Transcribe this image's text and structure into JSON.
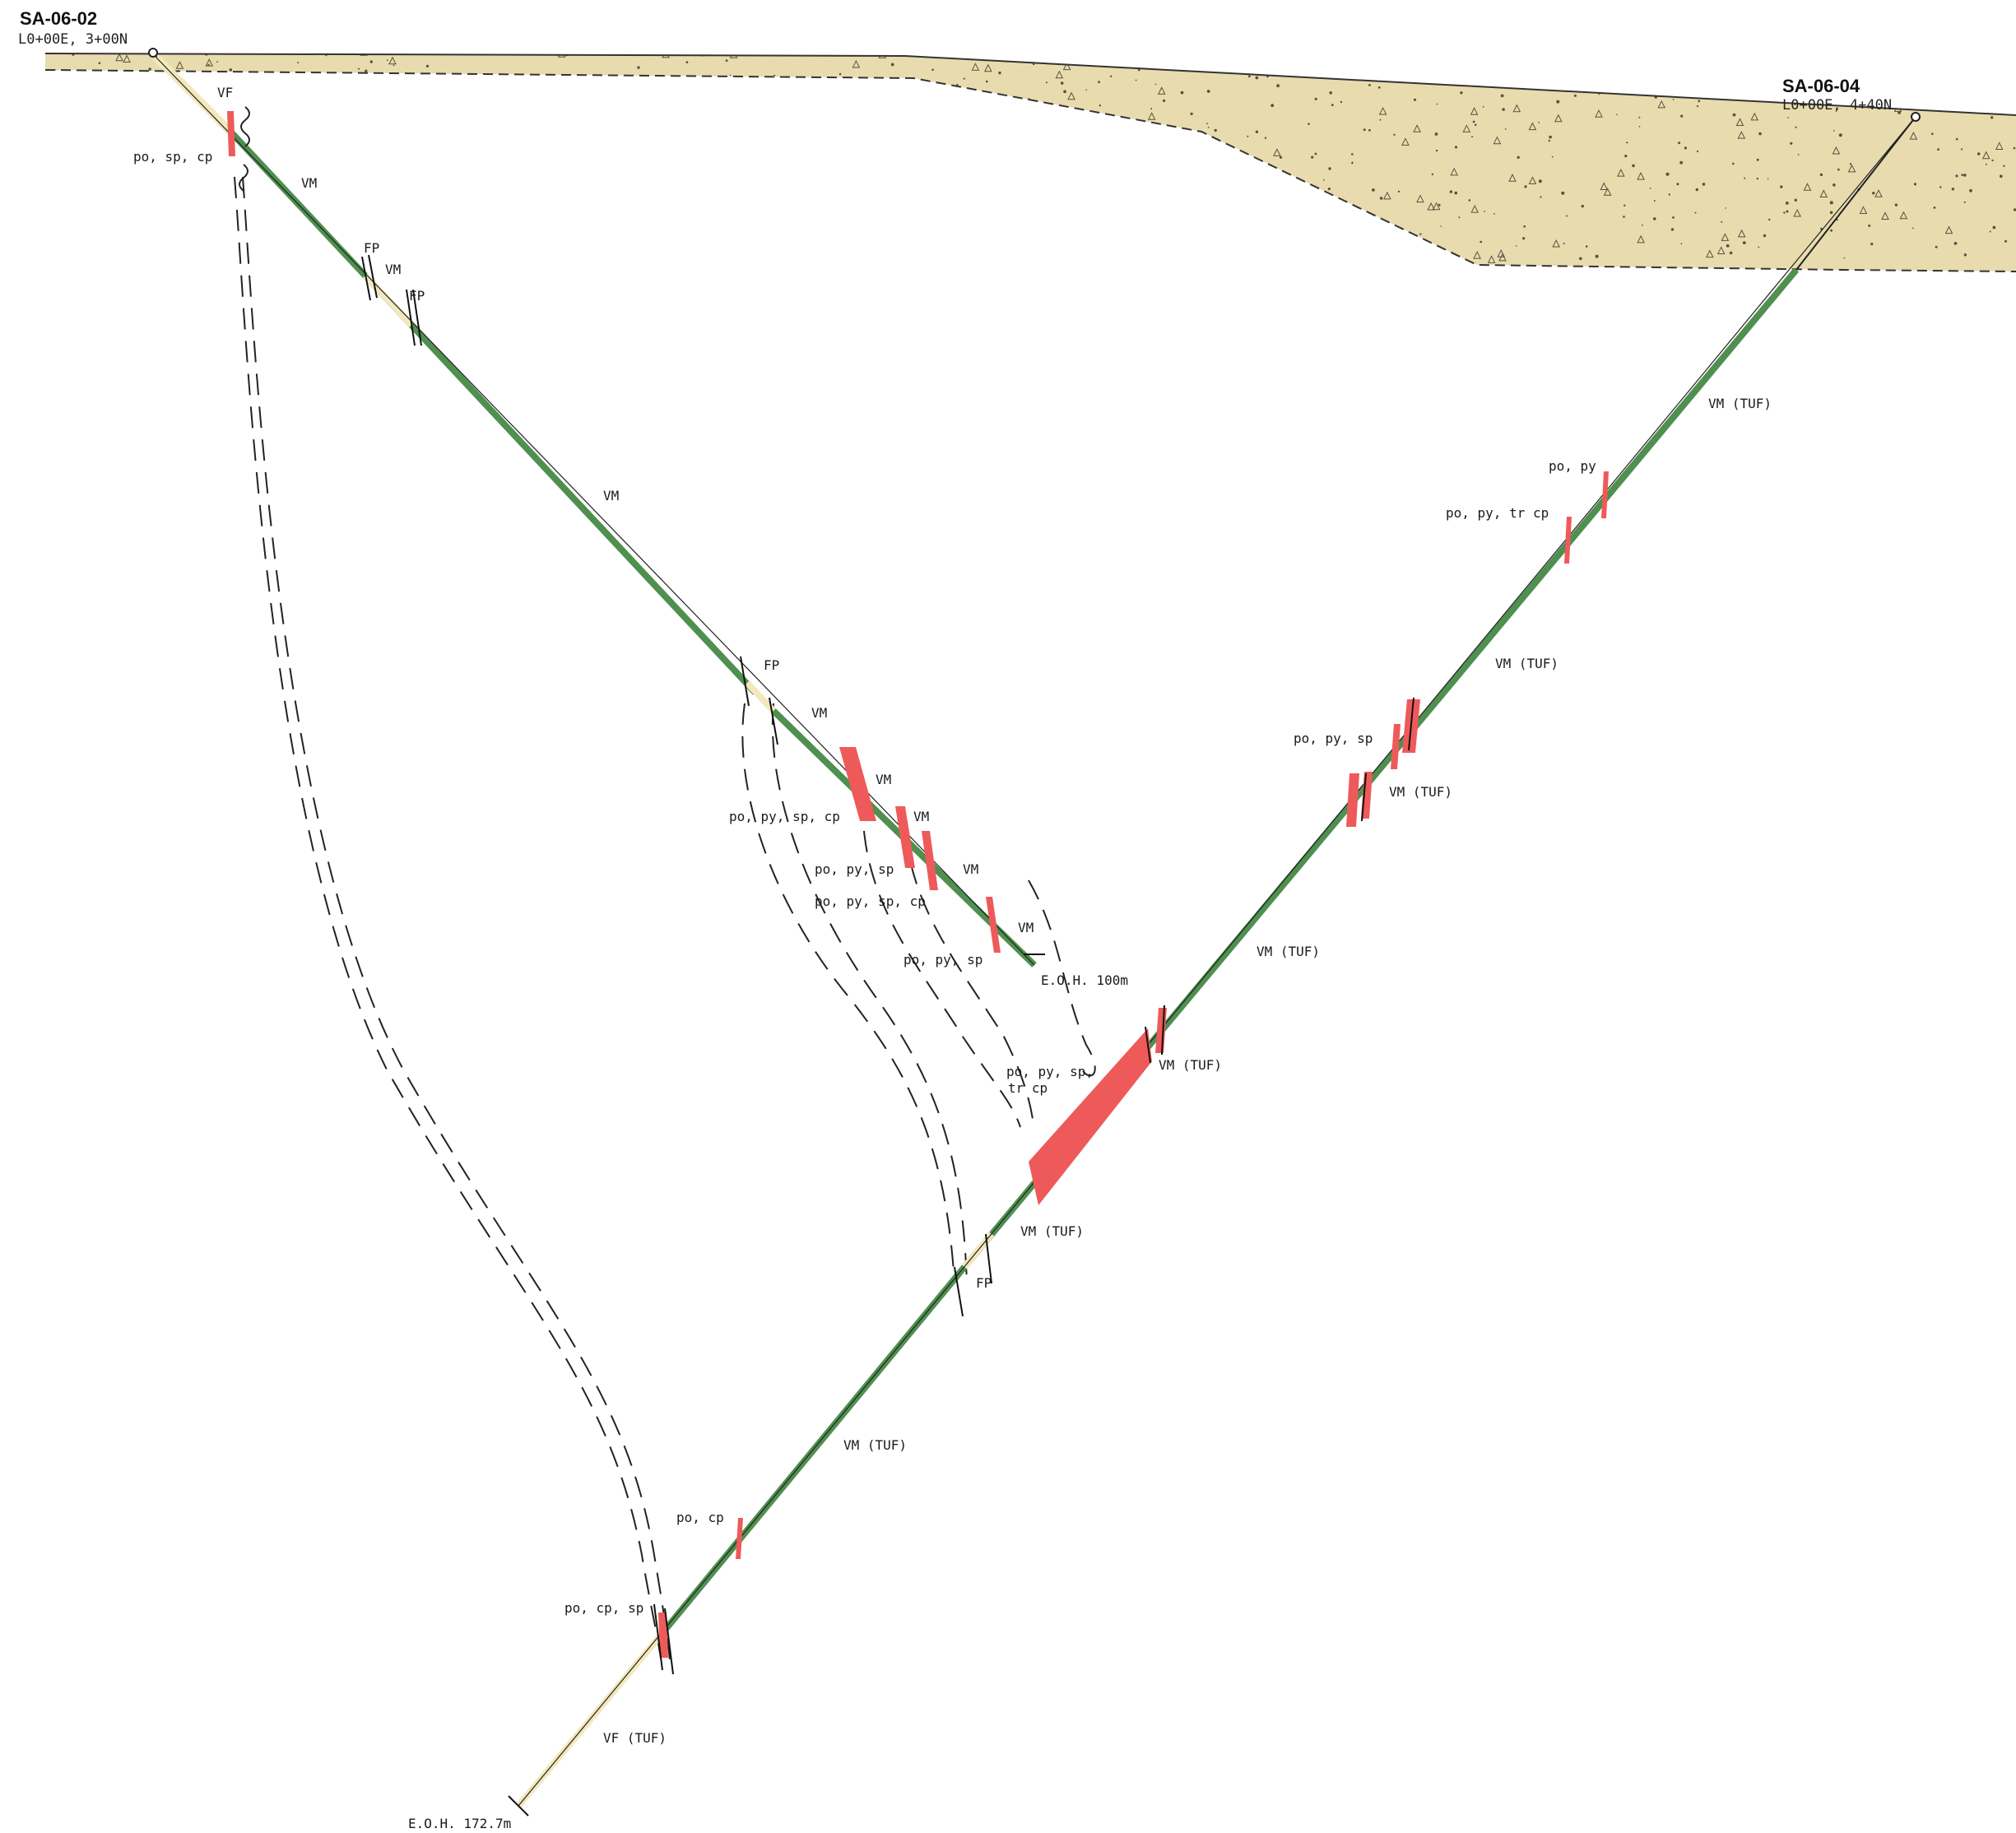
{
  "palette": {
    "overburden": "#e8dcae",
    "overburden_speckle": "#5a5040",
    "vm": "#4f8f4f",
    "felsic": "#f3e8bd",
    "sulphide": "#ee5a5a",
    "line": "#111111"
  },
  "holes": {
    "h1": {
      "name": "SA-06-02",
      "grid": "L0+00E, 3+00N",
      "eoh": "E.O.H. 100m"
    },
    "h2": {
      "name": "SA-06-04",
      "grid": "L0+00E, 4+40N",
      "eoh": "E.O.H. 172.7m"
    }
  },
  "labels": {
    "h1": [
      {
        "text": "VF",
        "name": "label-vf"
      },
      {
        "text": "po, sp, cp",
        "name": "label-mineral"
      },
      {
        "text": "VM",
        "name": "label-vm"
      },
      {
        "text": "FP",
        "name": "label-fp"
      },
      {
        "text": "VM",
        "name": "label-vm"
      },
      {
        "text": "FP",
        "name": "label-fp"
      },
      {
        "text": "VM",
        "name": "label-vm"
      },
      {
        "text": "FP",
        "name": "label-fp"
      },
      {
        "text": "VM",
        "name": "label-vm"
      },
      {
        "text": "VM",
        "name": "label-vm"
      },
      {
        "text": "po, py, sp, cp",
        "name": "label-mineral"
      },
      {
        "text": "VM",
        "name": "label-vm"
      },
      {
        "text": "VM",
        "name": "label-vm"
      },
      {
        "text": "po, py, sp",
        "name": "label-mineral"
      },
      {
        "text": "po, py, sp, cp",
        "name": "label-mineral"
      },
      {
        "text": "VM",
        "name": "label-vm"
      },
      {
        "text": "po, py, sp",
        "name": "label-mineral"
      }
    ],
    "h2": [
      {
        "text": "VM (TUF)",
        "name": "label-vm-tuf"
      },
      {
        "text": "po, py",
        "name": "label-mineral"
      },
      {
        "text": "po, py, tr cp",
        "name": "label-mineral"
      },
      {
        "text": "VM (TUF)",
        "name": "label-vm-tuf"
      },
      {
        "text": "po, py, sp",
        "name": "label-mineral"
      },
      {
        "text": "VM (TUF)",
        "name": "label-vm-tuf"
      },
      {
        "text": "VM (TUF)",
        "name": "label-vm-tuf"
      },
      {
        "text": "VM (TUF)",
        "name": "label-vm-tuf"
      },
      {
        "text": "po, py, sp,",
        "name": "label-mineral"
      },
      {
        "text": "tr cp",
        "name": "label-mineral"
      },
      {
        "text": "VM (TUF)",
        "name": "label-vm-tuf"
      },
      {
        "text": "FP",
        "name": "label-fp"
      },
      {
        "text": "VM (TUF)",
        "name": "label-vm-tuf"
      },
      {
        "text": "po, cp",
        "name": "label-mineral"
      },
      {
        "text": "po, cp, sp",
        "name": "label-mineral"
      },
      {
        "text": "VF (TUF)",
        "name": "label-vf-tuf"
      }
    ]
  }
}
